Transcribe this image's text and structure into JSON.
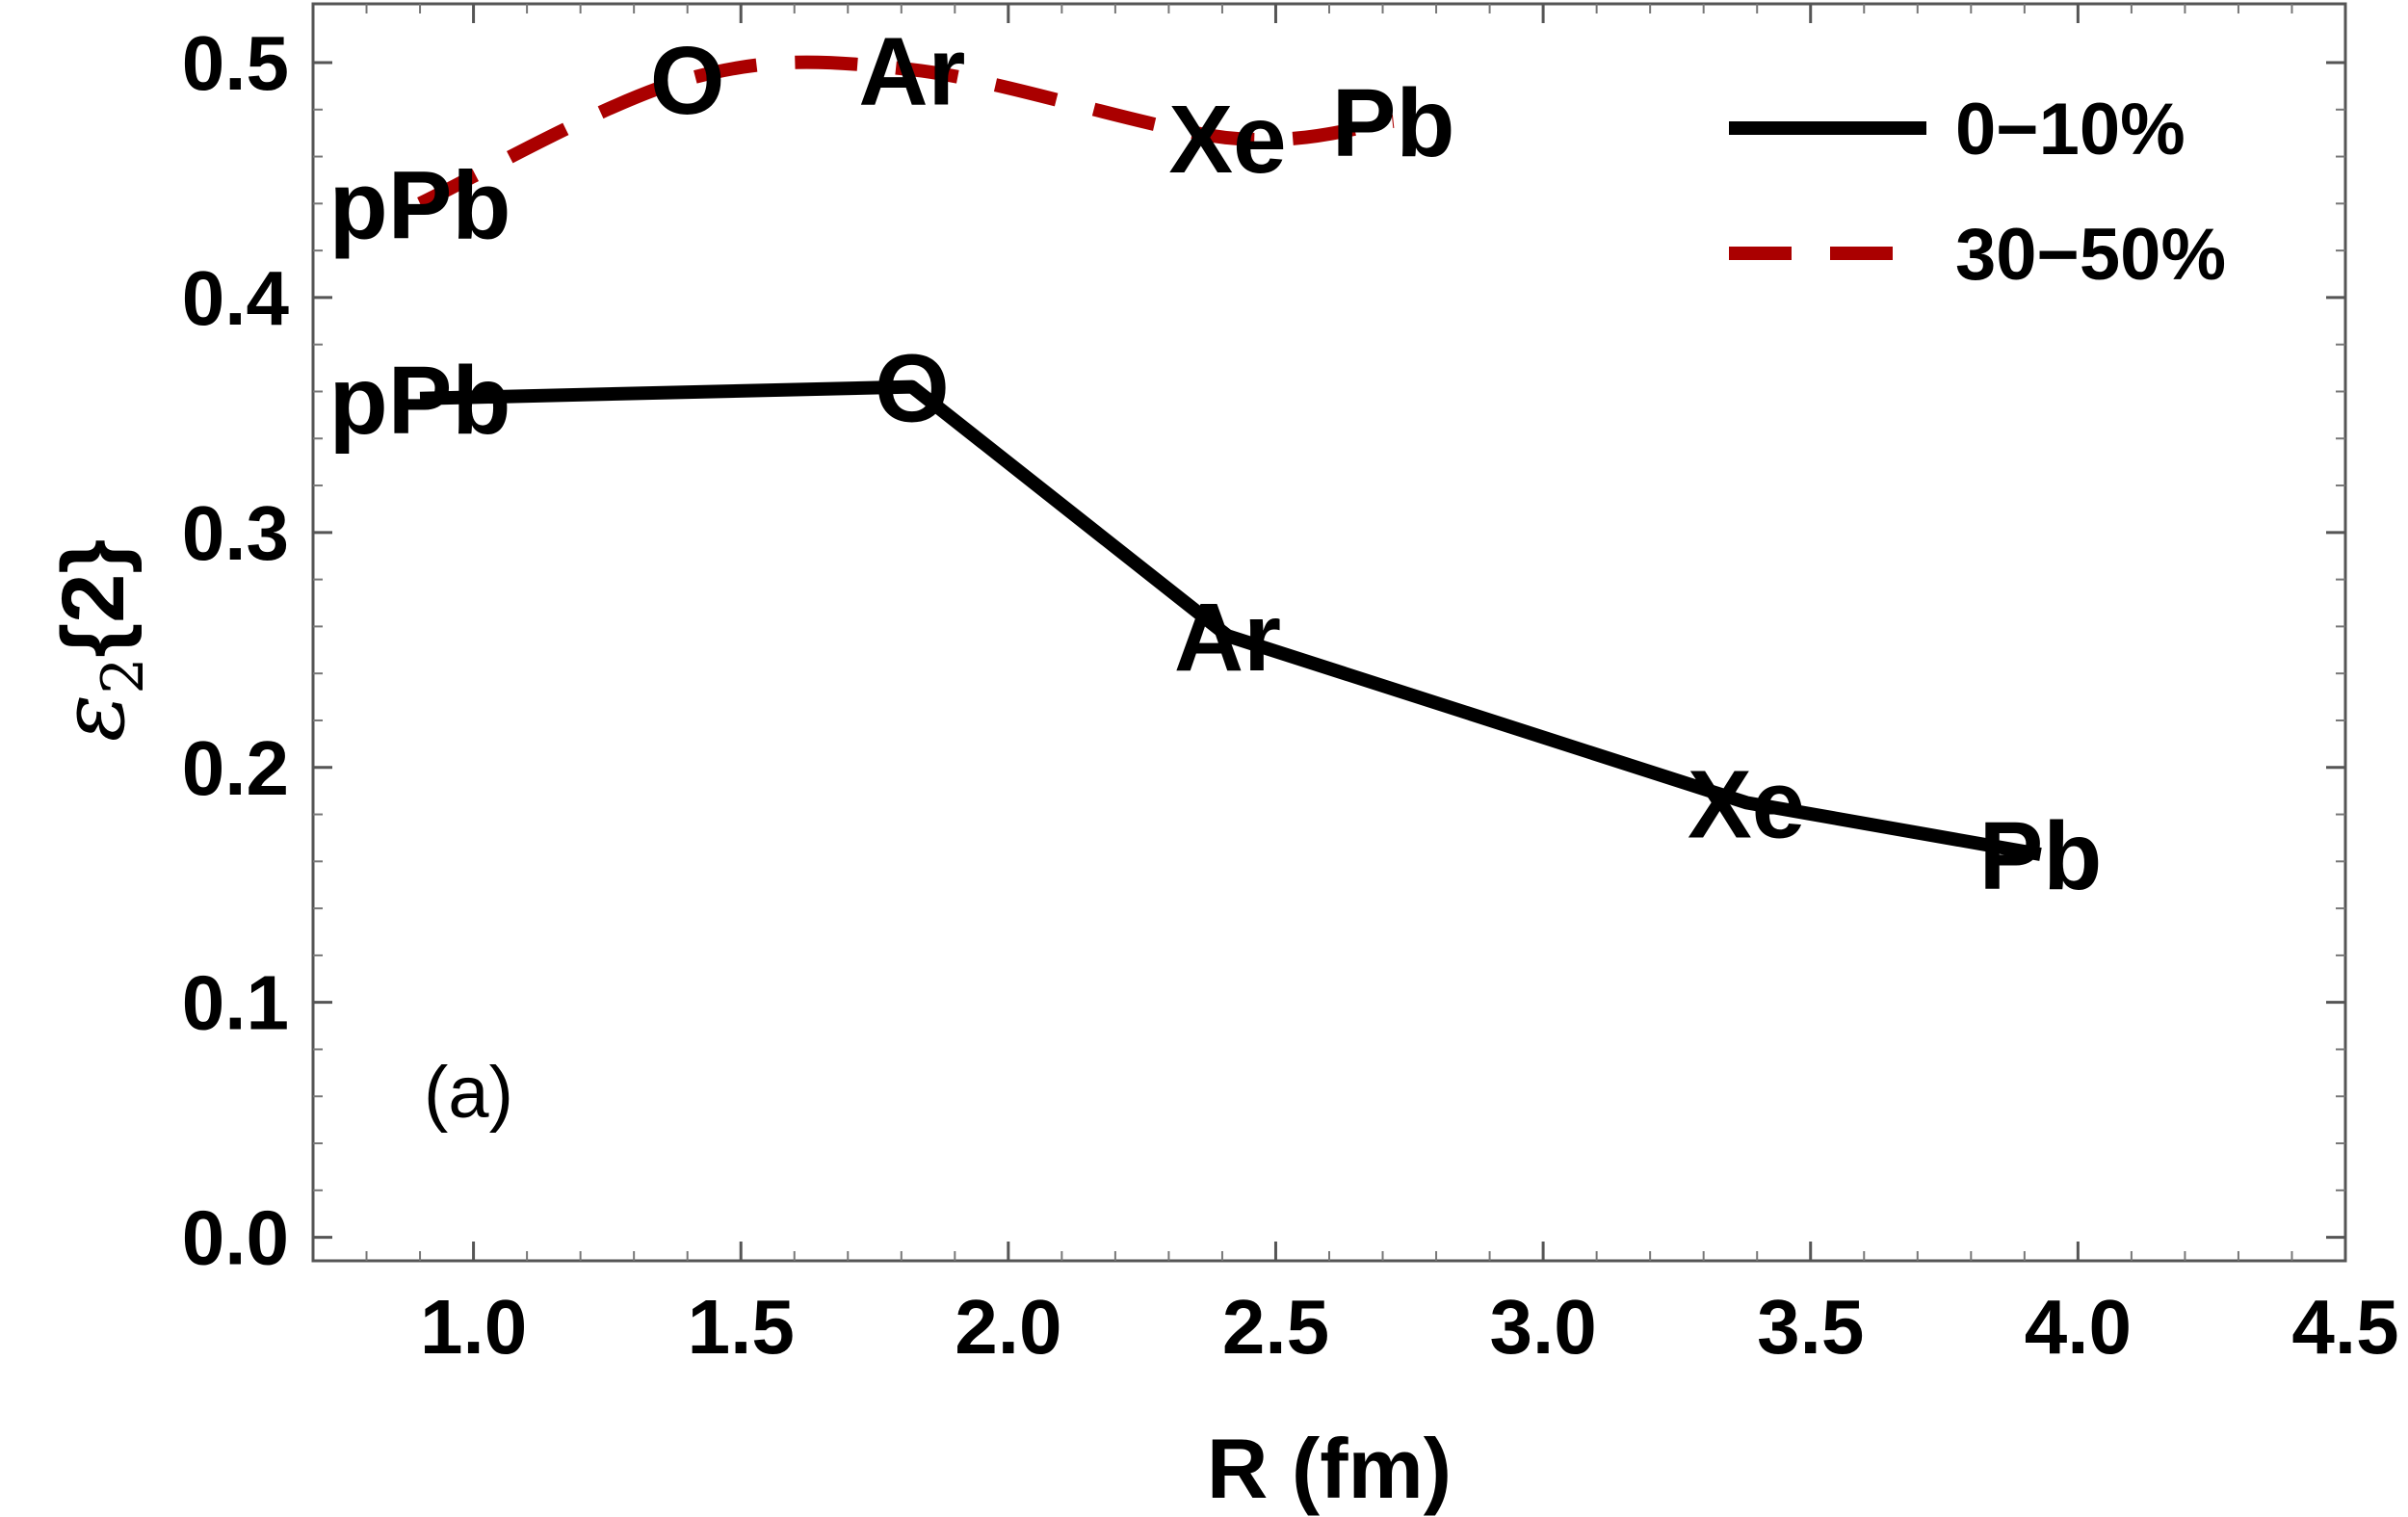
{
  "chart_data": {
    "type": "line",
    "xlabel": "R (fm)",
    "ylabel": {
      "symbol": "ε",
      "subscript": "2",
      "rest": "{2}"
    },
    "xlim": [
      0.7,
      4.5
    ],
    "ylim": [
      -0.01,
      0.525
    ],
    "xticks": [
      1.0,
      1.5,
      2.0,
      2.5,
      3.0,
      3.5,
      4.0,
      4.5
    ],
    "xtick_labels": [
      "1.0",
      "1.5",
      "2.0",
      "2.5",
      "3.0",
      "3.5",
      "4.0",
      "4.5"
    ],
    "yticks": [
      0.0,
      0.1,
      0.2,
      0.3,
      0.4,
      0.5
    ],
    "ytick_labels": [
      "0.0",
      "0.1",
      "0.2",
      "0.3",
      "0.4",
      "0.5"
    ],
    "grid": false,
    "legend_position": "top-right",
    "panel_label": "(a)",
    "series": [
      {
        "name": "0−10%",
        "color": "#000000",
        "style": "solid",
        "x": [
          0.9,
          1.82,
          2.41,
          3.38,
          3.93
        ],
        "y": [
          0.357,
          0.362,
          0.256,
          0.185,
          0.163
        ],
        "point_labels": [
          "pPb",
          "O",
          "Ar",
          "Xe",
          "Pb"
        ]
      },
      {
        "name": "30−50%",
        "color": "#aa0000",
        "style": "dashed",
        "x": [
          0.9,
          1.4,
          1.82,
          2.41,
          2.72
        ],
        "y": [
          0.44,
          0.493,
          0.497,
          0.468,
          0.475
        ],
        "point_labels": [
          "pPb",
          "O",
          "Ar",
          "Xe",
          "Pb"
        ]
      }
    ]
  }
}
